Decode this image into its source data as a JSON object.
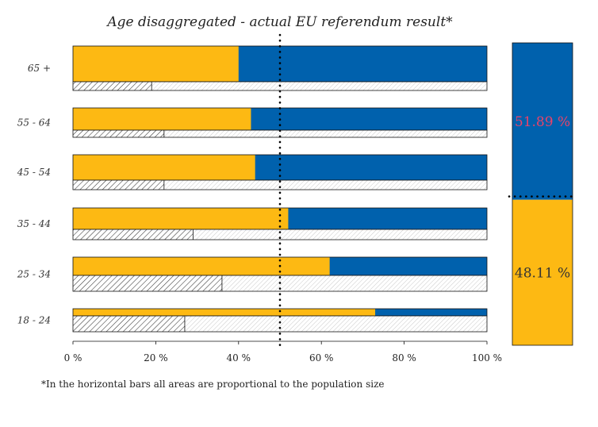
{
  "chart_data": {
    "type": "bar",
    "title": "Age disaggregated - actual EU referendum result*",
    "footnote": "*In the horizontal bars all areas are proportional to the population size",
    "categories": [
      "65 +",
      "55 - 64",
      "45 - 54",
      "35 - 44",
      "25 - 34",
      "18 - 24"
    ],
    "series": [
      {
        "color": "#FDB913",
        "values": [
          40,
          43,
          44,
          52,
          62,
          73
        ]
      },
      {
        "color": "#0061AD",
        "values": [
          60,
          57,
          56,
          48,
          38,
          27
        ]
      }
    ],
    "turnout": [
      19,
      22,
      22,
      29,
      36,
      27
    ],
    "x_ticks": [
      "0 %",
      "20 %",
      "40 %",
      "60 %",
      "80 %",
      "100 %"
    ],
    "xlim": [
      0,
      100
    ],
    "reference_line": 50,
    "overall": {
      "leave_label": "51.89 %",
      "remain_label": "48.11 %",
      "leave_value": 51.89,
      "remain_value": 48.11
    }
  },
  "colors": {
    "yellow": "#FDB913",
    "blue": "#0061AD",
    "pink": "#E8436A"
  }
}
